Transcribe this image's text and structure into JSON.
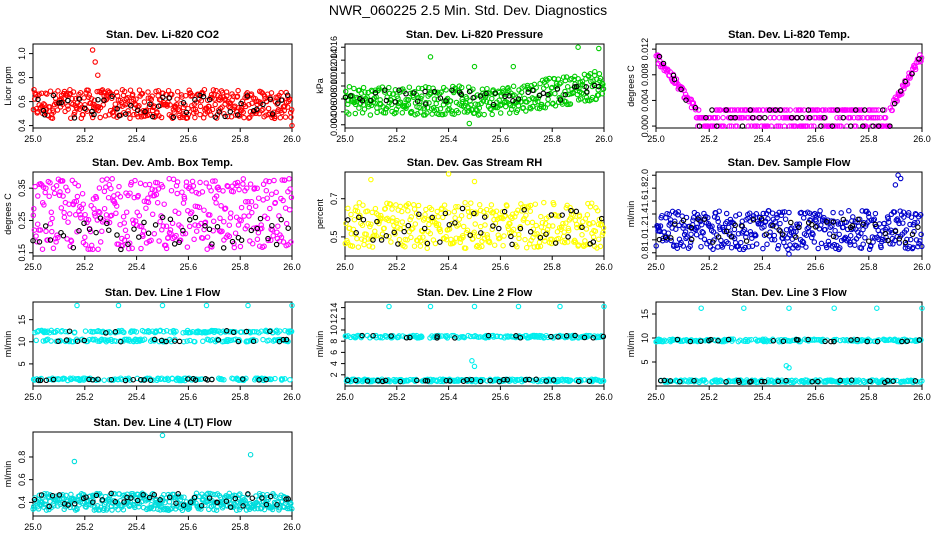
{
  "title": "NWR_060225  2.5 Min. Std. Dev. Diagnostics",
  "chart_data": [
    {
      "type": "scatter",
      "title": "Stan. Dev. Li-820 CO2",
      "ylabel": "Licor ppm",
      "xlim": [
        25.0,
        26.0
      ],
      "ylim": [
        0.38,
        1.08
      ],
      "xticks": [
        25.0,
        25.2,
        25.4,
        25.6,
        25.8,
        26.0
      ],
      "xtick_labels": [
        "25.0",
        "25.2",
        "25.4",
        "25.6",
        "25.8",
        "26.0"
      ],
      "yticks": [
        0.4,
        0.6,
        0.8,
        1.0
      ],
      "ytick_labels": [
        "0.4",
        "0.6",
        "0.8",
        "1.0"
      ],
      "series": [
        {
          "name": "all",
          "color": "#ff0000",
          "n": 420,
          "band": [
            0.46,
            0.7
          ],
          "outliers": [
            [
              25.23,
              1.03
            ],
            [
              25.24,
              0.93
            ],
            [
              25.25,
              0.82
            ],
            [
              26.0,
              0.4
            ]
          ]
        },
        {
          "name": "selected",
          "color": "#000000",
          "n": 48,
          "band": [
            0.46,
            0.66
          ],
          "outliers": []
        }
      ]
    },
    {
      "type": "scatter",
      "title": "Stan. Dev. Li-820 Pressure",
      "ylabel": "kPa",
      "xlim": [
        25.0,
        26.0
      ],
      "ylim": [
        0.0035,
        0.0165
      ],
      "xticks": [
        25.0,
        25.2,
        25.4,
        25.6,
        25.8,
        26.0
      ],
      "xtick_labels": [
        "25.0",
        "25.2",
        "25.4",
        "25.6",
        "25.8",
        "26.0"
      ],
      "yticks": [
        0.004,
        0.006,
        0.008,
        0.01,
        0.012,
        0.014,
        0.016
      ],
      "ytick_labels": [
        "0.004",
        "0.006",
        "0.008",
        "0.010",
        "0.012",
        "0.014",
        "0.016"
      ],
      "series": [
        {
          "name": "all",
          "color": "#00cc00",
          "n": 420,
          "band": [
            0.0055,
            0.01
          ],
          "rise": 0.0025,
          "outliers": [
            [
              25.33,
              0.0145
            ],
            [
              25.5,
              0.013
            ],
            [
              25.65,
              0.013
            ],
            [
              25.9,
              0.016
            ],
            [
              25.98,
              0.0158
            ],
            [
              25.48,
              0.0042
            ]
          ]
        },
        {
          "name": "selected",
          "color": "#000000",
          "n": 45,
          "band": [
            0.007,
            0.0095
          ],
          "rise": 0.001,
          "outliers": []
        }
      ]
    },
    {
      "type": "scatter",
      "title": "Stan. Dev. Li-820 Temp.",
      "ylabel": "degrees C",
      "xlim": [
        25.0,
        26.0
      ],
      "ylim": [
        -0.0003,
        0.0128
      ],
      "xticks": [
        25.0,
        25.2,
        25.4,
        25.6,
        25.8,
        26.0
      ],
      "xtick_labels": [
        "25.0",
        "25.2",
        "25.4",
        "25.6",
        "25.8",
        "26.0"
      ],
      "yticks": [
        0.0,
        0.004,
        0.008,
        0.012
      ],
      "ytick_labels": [
        "0.000",
        "0.004",
        "0.008",
        "0.012"
      ],
      "levels": [
        0.0,
        0.0013,
        0.0025
      ],
      "series": [
        {
          "name": "all",
          "color": "#ff00ff",
          "n": 360,
          "outliers": []
        },
        {
          "name": "selected",
          "color": "#000000",
          "n": 45,
          "outliers": []
        }
      ]
    },
    {
      "type": "scatter",
      "title": "Stan. Dev. Amb. Box Temp.",
      "ylabel": "degrees C",
      "xlim": [
        25.0,
        26.0
      ],
      "ylim": [
        0.14,
        0.4
      ],
      "xticks": [
        25.0,
        25.2,
        25.4,
        25.6,
        25.8,
        26.0
      ],
      "xtick_labels": [
        "25.0",
        "25.2",
        "25.4",
        "25.6",
        "25.8",
        "26.0"
      ],
      "yticks": [
        0.15,
        0.25,
        0.35
      ],
      "ytick_labels": [
        "0.15",
        "0.25",
        "0.35"
      ],
      "series": [
        {
          "name": "all",
          "color": "#ff00ff",
          "n": 380,
          "band": [
            0.16,
            0.38
          ],
          "outliers": []
        },
        {
          "name": "selected",
          "color": "#000000",
          "n": 45,
          "band": [
            0.16,
            0.26
          ],
          "outliers": []
        }
      ]
    },
    {
      "type": "scatter",
      "title": "Stan. Dev. Gas Stream RH",
      "ylabel": "percent",
      "xlim": [
        25.0,
        26.0
      ],
      "ylim": [
        0.4,
        0.84
      ],
      "xticks": [
        25.0,
        25.2,
        25.4,
        25.6,
        25.8,
        26.0
      ],
      "xtick_labels": [
        "25.0",
        "25.2",
        "25.4",
        "25.6",
        "25.8",
        "26.0"
      ],
      "yticks": [
        0.5,
        0.7
      ],
      "ytick_labels": [
        "0.5",
        "0.7"
      ],
      "series": [
        {
          "name": "all",
          "color": "#ffff00",
          "n": 380,
          "band": [
            0.44,
            0.68
          ],
          "outliers": [
            [
              25.1,
              0.8
            ],
            [
              25.4,
              0.83
            ],
            [
              25.5,
              0.79
            ]
          ]
        },
        {
          "name": "selected",
          "color": "#000000",
          "n": 45,
          "band": [
            0.46,
            0.66
          ],
          "outliers": []
        }
      ]
    },
    {
      "type": "scatter",
      "title": "Stan. Dev. Sample Flow",
      "ylabel": "ml/min",
      "xlim": [
        25.0,
        26.0
      ],
      "ylim": [
        0.75,
        2.05
      ],
      "xticks": [
        25.0,
        25.2,
        25.4,
        25.6,
        25.8,
        26.0
      ],
      "xtick_labels": [
        "25.0",
        "25.2",
        "25.4",
        "25.6",
        "25.8",
        "26.0"
      ],
      "yticks": [
        0.8,
        1.0,
        1.2,
        1.4,
        1.6,
        1.8,
        2.0
      ],
      "ytick_labels": [
        "0.8",
        "1.0",
        "1.2",
        "1.4",
        "1.6",
        "1.8",
        "2.0"
      ],
      "series": [
        {
          "name": "all",
          "color": "#0000cc",
          "n": 420,
          "band": [
            0.85,
            1.45
          ],
          "outliers": [
            [
              25.91,
              2.0
            ],
            [
              25.92,
              1.95
            ],
            [
              25.9,
              1.85
            ],
            [
              25.5,
              0.78
            ]
          ]
        },
        {
          "name": "selected",
          "color": "#000000",
          "n": 45,
          "band": [
            0.95,
            1.35
          ],
          "outliers": []
        }
      ]
    },
    {
      "type": "scatter",
      "title": "Stan. Dev. Line 1 Flow",
      "ylabel": "ml/min",
      "xlim": [
        25.0,
        26.0
      ],
      "ylim": [
        0.0,
        19.0
      ],
      "xticks": [
        25.0,
        25.2,
        25.4,
        25.6,
        25.8,
        26.0
      ],
      "xtick_labels": [
        "25.0",
        "25.2",
        "25.4",
        "25.6",
        "25.8",
        "26.0"
      ],
      "yticks": [
        5,
        10,
        15
      ],
      "ytick_labels": [
        "5",
        "10",
        "15"
      ],
      "levels": [
        1.5,
        10.3,
        12.3
      ],
      "series": [
        {
          "name": "all",
          "color": "#00eeee",
          "n": 400,
          "outliers": [
            [
              25.17,
              18.2
            ],
            [
              25.33,
              18.2
            ],
            [
              25.5,
              18.2
            ],
            [
              25.67,
              18.2
            ],
            [
              25.83,
              18.2
            ],
            [
              26.0,
              18.2
            ]
          ]
        },
        {
          "name": "selected",
          "color": "#000000",
          "n": 45,
          "outliers": []
        }
      ]
    },
    {
      "type": "scatter",
      "title": "Stan. Dev. Line 2 Flow",
      "ylabel": "ml/min",
      "xlim": [
        25.0,
        26.0
      ],
      "ylim": [
        0.0,
        15.0
      ],
      "xticks": [
        25.0,
        25.2,
        25.4,
        25.6,
        25.8,
        26.0
      ],
      "xtick_labels": [
        "25.0",
        "25.2",
        "25.4",
        "25.6",
        "25.8",
        "26.0"
      ],
      "yticks": [
        2,
        4,
        6,
        8,
        10,
        12,
        14
      ],
      "ytick_labels": [
        "2",
        "4",
        "6",
        "8",
        "10",
        "12",
        "14"
      ],
      "levels": [
        1.0,
        8.8
      ],
      "series": [
        {
          "name": "all",
          "color": "#00eeee",
          "n": 380,
          "outliers": [
            [
              25.17,
              14.2
            ],
            [
              25.33,
              14.2
            ],
            [
              25.5,
              14.2
            ],
            [
              25.67,
              14.2
            ],
            [
              25.83,
              14.2
            ],
            [
              26.0,
              14.2
            ],
            [
              25.49,
              4.5
            ],
            [
              25.5,
              3.5
            ]
          ]
        },
        {
          "name": "selected",
          "color": "#000000",
          "n": 45,
          "outliers": []
        }
      ]
    },
    {
      "type": "scatter",
      "title": "Stan. Dev. Line 3 Flow",
      "ylabel": "ml/min",
      "xlim": [
        25.0,
        26.0
      ],
      "ylim": [
        0.0,
        17.5
      ],
      "xticks": [
        25.0,
        25.2,
        25.4,
        25.6,
        25.8,
        26.0
      ],
      "xtick_labels": [
        "25.0",
        "25.2",
        "25.4",
        "25.6",
        "25.8",
        "26.0"
      ],
      "yticks": [
        5,
        10,
        15
      ],
      "ytick_labels": [
        "5",
        "10",
        "15"
      ],
      "levels": [
        1.0,
        9.5
      ],
      "series": [
        {
          "name": "all",
          "color": "#00eeee",
          "n": 380,
          "outliers": [
            [
              25.17,
              16.2
            ],
            [
              25.33,
              16.2
            ],
            [
              25.5,
              16.2
            ],
            [
              25.67,
              16.2
            ],
            [
              25.83,
              16.2
            ],
            [
              26.0,
              16.2
            ],
            [
              25.49,
              4.2
            ],
            [
              25.5,
              3.8
            ]
          ]
        },
        {
          "name": "selected",
          "color": "#000000",
          "n": 45,
          "outliers": []
        }
      ]
    },
    {
      "type": "scatter",
      "title": "Stan. Dev. Line 4 (LT) Flow",
      "ylabel": "ml/min",
      "xlim": [
        25.0,
        26.0
      ],
      "ylim": [
        0.28,
        1.02
      ],
      "xticks": [
        25.0,
        25.2,
        25.4,
        25.6,
        25.8,
        26.0
      ],
      "xtick_labels": [
        "25.0",
        "25.2",
        "25.4",
        "25.6",
        "25.8",
        "26.0"
      ],
      "yticks": [
        0.4,
        0.6,
        0.8
      ],
      "ytick_labels": [
        "0.4",
        "0.6",
        "0.8"
      ],
      "series": [
        {
          "name": "all",
          "color": "#00dddd",
          "n": 420,
          "band": [
            0.33,
            0.48
          ],
          "outliers": [
            [
              25.16,
              0.76
            ],
            [
              25.5,
              0.99
            ],
            [
              25.84,
              0.82
            ]
          ]
        },
        {
          "name": "selected",
          "color": "#000000",
          "n": 45,
          "band": [
            0.35,
            0.48
          ],
          "outliers": []
        }
      ]
    }
  ]
}
